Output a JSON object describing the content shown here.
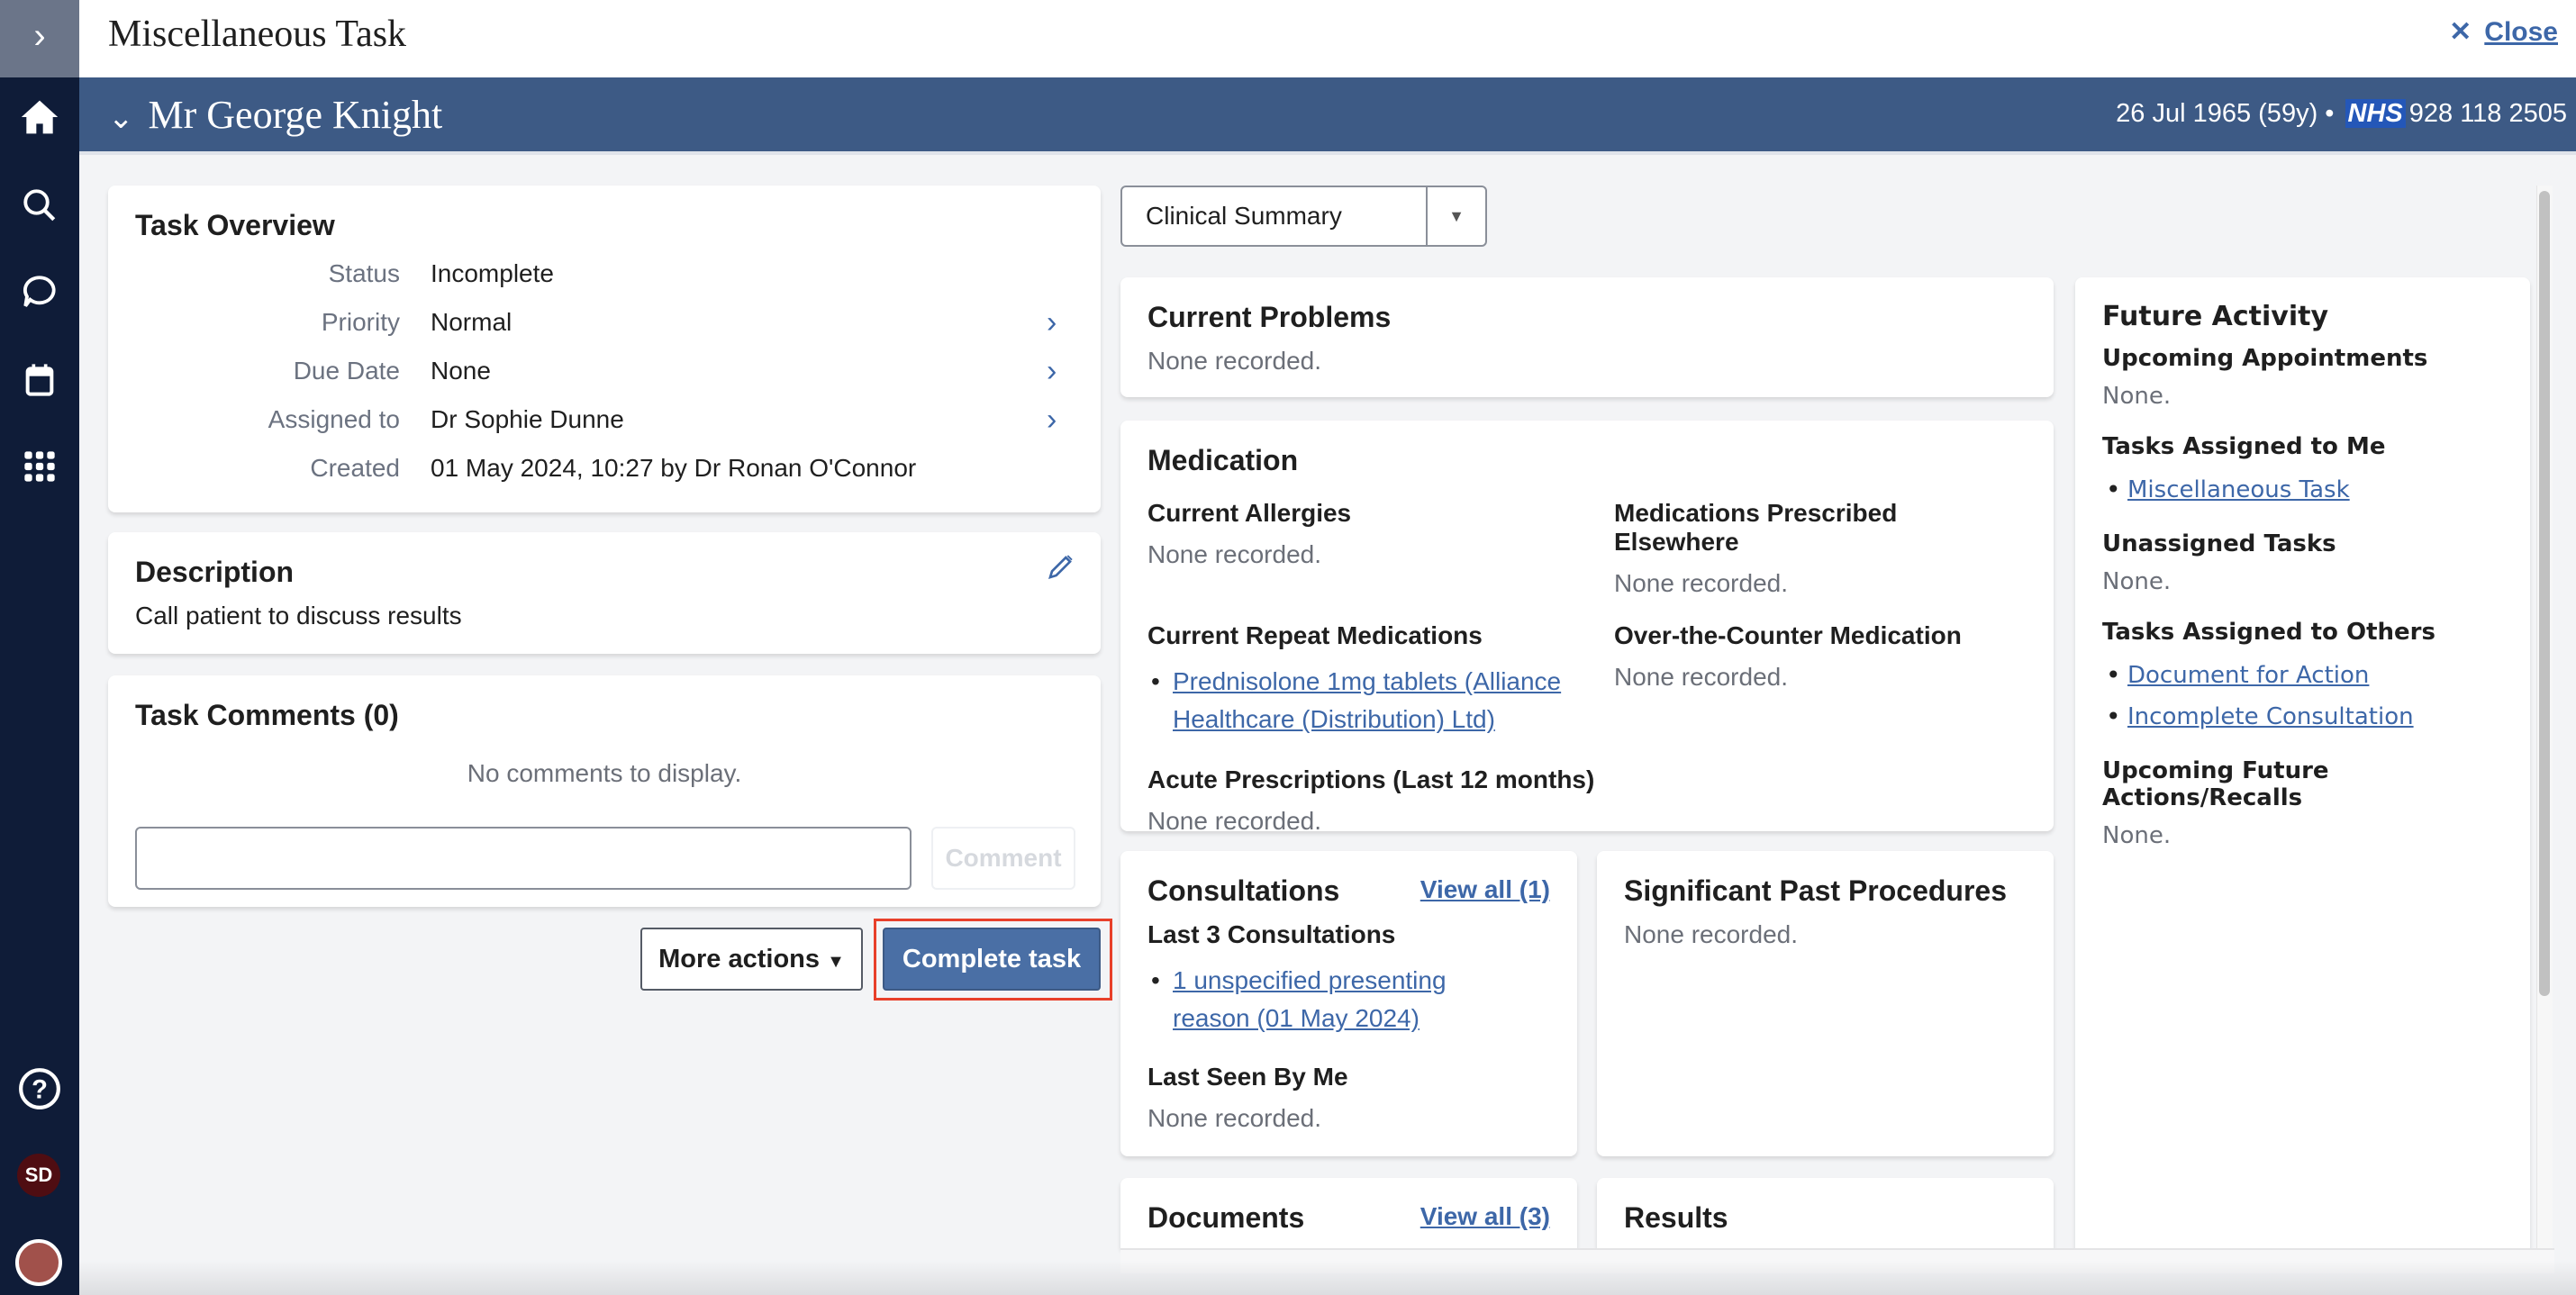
{
  "sidebar": {
    "items": [
      "expand",
      "home",
      "search",
      "messages",
      "calendar",
      "apps",
      "help"
    ],
    "user_initials": "SD"
  },
  "header": {
    "title": "Miscellaneous Task",
    "close_label": "Close"
  },
  "patient": {
    "name": "Mr George Knight",
    "dob": "26 Jul 1965 (59y)",
    "nhs_label": "NHS",
    "nhs_number": "928 118 2505"
  },
  "task_overview": {
    "title": "Task Overview",
    "fields": [
      {
        "label": "Status",
        "value": "Incomplete"
      },
      {
        "label": "Priority",
        "value": "Normal"
      },
      {
        "label": "Due Date",
        "value": "None"
      },
      {
        "label": "Assigned to",
        "value": "Dr Sophie Dunne"
      },
      {
        "label": "Created",
        "value": "01 May 2024, 10:27 by Dr Ronan O'Connor"
      }
    ]
  },
  "description": {
    "title": "Description",
    "text": "Call patient to discuss results"
  },
  "comments": {
    "title": "Task Comments (0)",
    "empty": "No comments to display.",
    "input_value": "",
    "button": "Comment"
  },
  "actions": {
    "more": "More actions",
    "complete": "Complete task"
  },
  "view_select": {
    "value": "Clinical Summary"
  },
  "current_problems": {
    "title": "Current Problems",
    "value": "None recorded."
  },
  "medication": {
    "title": "Medication",
    "allergies": {
      "title": "Current Allergies",
      "value": "None recorded."
    },
    "elsewhere": {
      "title": "Medications Prescribed Elsewhere",
      "value": "None recorded."
    },
    "repeat": {
      "title": "Current Repeat Medications",
      "items": [
        "Prednisolone 1mg tablets (Alliance Healthcare (Distribution) Ltd)"
      ]
    },
    "otc": {
      "title": "Over-the-Counter Medication",
      "value": "None recorded."
    },
    "acute": {
      "title": "Acute Prescriptions (Last 12 months)",
      "value": "None recorded."
    }
  },
  "consultations": {
    "title": "Consultations",
    "view_all": "View all (1)",
    "last3_title": "Last 3 Consultations",
    "items": [
      "1 unspecified presenting reason (01 May 2024)"
    ],
    "last_seen_title": "Last Seen By Me",
    "last_seen_value": "None recorded."
  },
  "procedures": {
    "title": "Significant Past Procedures",
    "value": "None recorded."
  },
  "documents": {
    "title": "Documents",
    "view_all": "View all (3)"
  },
  "results": {
    "title": "Results"
  },
  "future": {
    "title": "Future Activity",
    "appointments": {
      "title": "Upcoming Appointments",
      "value": "None."
    },
    "assigned_me": {
      "title": "Tasks Assigned to Me",
      "items": [
        "Miscellaneous Task"
      ]
    },
    "unassigned": {
      "title": "Unassigned Tasks",
      "value": "None."
    },
    "assigned_others": {
      "title": "Tasks Assigned to Others",
      "items": [
        "Document for Action",
        "Incomplete Consultation"
      ]
    },
    "recalls": {
      "title": "Upcoming Future Actions/Recalls",
      "value": "None."
    }
  },
  "colors": {
    "sidebar": "#0f1c38",
    "banner": "#3d5a85",
    "primary": "#4a6fa5",
    "link": "#3d67a8",
    "highlight": "#e8402a",
    "avatar": "#4f0d12"
  }
}
